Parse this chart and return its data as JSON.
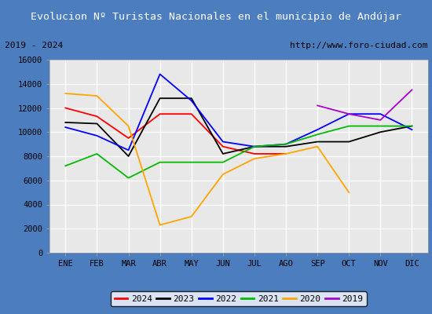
{
  "title": "Evolucion Nº Turistas Nacionales en el municipio de Andújar",
  "subtitle_left": "2019 - 2024",
  "subtitle_right": "http://www.foro-ciudad.com",
  "months": [
    "ENE",
    "FEB",
    "MAR",
    "ABR",
    "MAY",
    "JUN",
    "JUL",
    "AGO",
    "SEP",
    "OCT",
    "NOV",
    "DIC"
  ],
  "ylim": [
    0,
    16000
  ],
  "yticks": [
    0,
    2000,
    4000,
    6000,
    8000,
    10000,
    12000,
    14000,
    16000
  ],
  "series": {
    "2024": {
      "color": "#ff0000",
      "data": [
        12000,
        11300,
        9500,
        11500,
        11500,
        8800,
        8200,
        8200,
        null,
        null,
        null,
        null
      ]
    },
    "2023": {
      "color": "#000000",
      "data": [
        10800,
        10700,
        8000,
        12800,
        12800,
        8200,
        8800,
        8800,
        9200,
        9200,
        10000,
        10500
      ]
    },
    "2022": {
      "color": "#0000ff",
      "data": [
        10400,
        9700,
        8500,
        14800,
        12600,
        9200,
        8800,
        9000,
        10200,
        11500,
        11500,
        10200
      ]
    },
    "2021": {
      "color": "#00bb00",
      "data": [
        7200,
        8200,
        6200,
        7500,
        7500,
        7500,
        8800,
        9000,
        9800,
        10500,
        10500,
        10500
      ]
    },
    "2020": {
      "color": "#ffa500",
      "data": [
        13200,
        13000,
        10500,
        2300,
        3000,
        6500,
        7800,
        8200,
        8800,
        5000,
        null,
        null
      ]
    },
    "2019": {
      "color": "#aa00cc",
      "data": [
        null,
        null,
        null,
        null,
        null,
        null,
        null,
        null,
        12200,
        11500,
        11000,
        13500
      ]
    }
  },
  "legend_order": [
    "2024",
    "2023",
    "2022",
    "2021",
    "2020",
    "2019"
  ],
  "title_bgcolor": "#4c7dbf",
  "title_color": "#ffffff",
  "subtitle_bgcolor": "#ffffff",
  "subtitle_color": "#000000",
  "plot_bgcolor": "#e8e8e8",
  "grid_color": "#ffffff"
}
